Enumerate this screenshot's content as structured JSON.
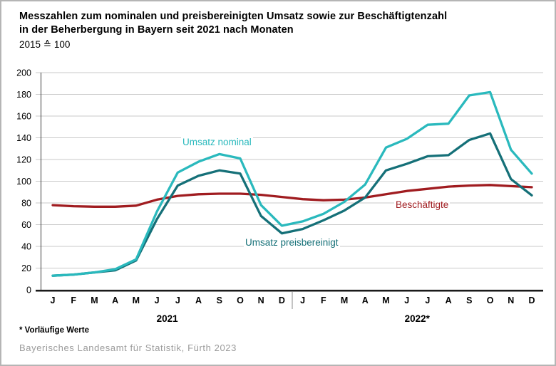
{
  "title": {
    "line1": "Messzahlen zum nominalen und preisbereinigten Umsatz sowie zur Beschäftigtenzahl",
    "line2": "in der Beherbergung in Bayern seit 2021 nach Monaten",
    "subtitle": "2015 ≙ 100"
  },
  "footnote": "* Vorläufige Werte",
  "source": "Bayerisches Landesamt für Statistik, Fürth 2023",
  "chart_data": {
    "type": "line",
    "categories": [
      "J",
      "F",
      "M",
      "A",
      "M",
      "J",
      "J",
      "A",
      "S",
      "O",
      "N",
      "D",
      "J",
      "F",
      "M",
      "A",
      "M",
      "J",
      "J",
      "A",
      "S",
      "O",
      "N",
      "D"
    ],
    "year_groups": [
      {
        "label": "2021",
        "from": 0,
        "to": 11
      },
      {
        "label": "2022*",
        "from": 12,
        "to": 23
      }
    ],
    "series": [
      {
        "name": "Umsatz nominal",
        "color": "#2ab9bd",
        "values": [
          13,
          14,
          16,
          19,
          28,
          72,
          108,
          118,
          125,
          121,
          78,
          59,
          63,
          70,
          81,
          97,
          131,
          139,
          152,
          153,
          179,
          182,
          129,
          107
        ]
      },
      {
        "name": "Umsatz preisbereinigt",
        "color": "#157078",
        "values": [
          13,
          14,
          16,
          18,
          27,
          65,
          96,
          105,
          110,
          107,
          68,
          52,
          56,
          64,
          73,
          85,
          110,
          116,
          123,
          124,
          138,
          144,
          102,
          87
        ]
      },
      {
        "name": "Beschäftigte",
        "color": "#a01c20",
        "values": [
          78,
          77,
          76.5,
          76.5,
          77.5,
          83,
          86.5,
          88,
          88.5,
          88.5,
          87.5,
          85.5,
          83.5,
          82.5,
          83,
          85,
          88,
          91,
          93,
          95,
          96,
          96.5,
          95.5,
          94.5
        ]
      }
    ],
    "ylim": [
      0,
      200
    ],
    "ytick_step": 20,
    "grid": true,
    "legend_position": "inline-labels"
  }
}
